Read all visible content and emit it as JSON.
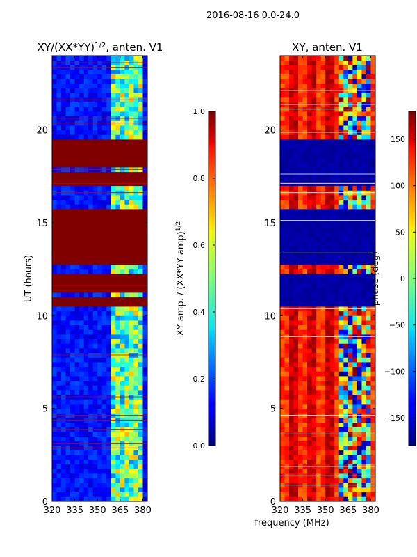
{
  "figure": {
    "suptitle": "2016-08-16 0.0-24.0",
    "xlabel": "frequency (MHz)"
  },
  "chart_data": [
    {
      "type": "heatmap",
      "title": "XY/(XX*YY)",
      "title_sup": "1/2",
      "title_suffix": ", anten. V1",
      "xlabel": "",
      "ylabel": "UT (hours)",
      "xlim": [
        320,
        383
      ],
      "ylim": [
        0,
        24
      ],
      "xticks": [
        320,
        335,
        350,
        365,
        380
      ],
      "yticks": [
        0,
        5,
        10,
        15,
        20
      ],
      "colorbar": {
        "label": "XY amp. / (XX*YY amp)",
        "label_sup": "1/2",
        "range": [
          0.0,
          1.0
        ],
        "ticks": [
          0.0,
          0.2,
          0.4,
          0.6,
          0.8,
          1.0
        ],
        "tick_labels": [
          "0.0",
          "0.2",
          "0.4",
          "0.6",
          "0.8",
          "1.0"
        ]
      },
      "saturated_hours": [
        [
          10.5,
          11.1
        ],
        [
          11.3,
          12.3
        ],
        [
          12.8,
          15.8
        ],
        [
          16.9,
          17.7
        ],
        [
          17.9,
          18.7
        ],
        [
          18.8,
          19.6
        ]
      ],
      "rfi_band_mhz": [
        359,
        381
      ]
    },
    {
      "type": "heatmap",
      "title": "XY, anten. V1",
      "xlabel": "",
      "ylabel": "",
      "xlim": [
        320,
        383
      ],
      "ylim": [
        0,
        24
      ],
      "xticks": [
        320,
        335,
        350,
        365,
        380
      ],
      "yticks": [
        0,
        5,
        10,
        15,
        20
      ],
      "colorbar": {
        "label": "phase (deg)",
        "range": [
          -180,
          180
        ],
        "ticks": [
          -150,
          -100,
          -50,
          0,
          50,
          100,
          150
        ],
        "tick_labels": [
          "−150",
          "−100",
          "−50",
          "0",
          "50",
          "100",
          "150"
        ]
      },
      "flat_hours": [
        [
          10.5,
          12.3
        ],
        [
          12.8,
          15.8
        ],
        [
          16.9,
          19.6
        ]
      ],
      "rfi_band_mhz": [
        359,
        381
      ]
    }
  ]
}
